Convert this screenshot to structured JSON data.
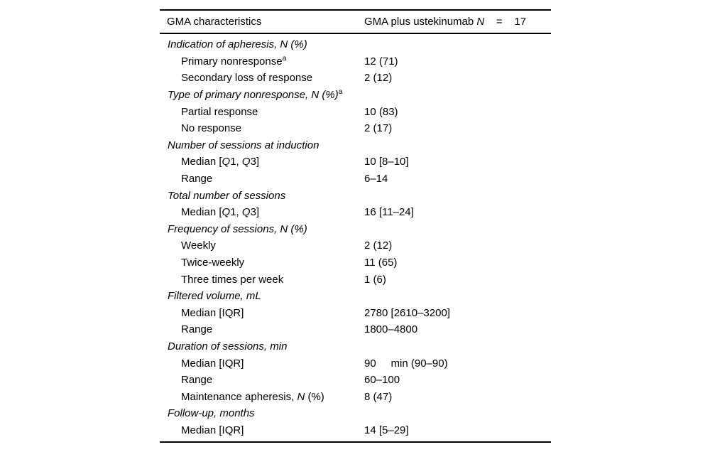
{
  "page": {
    "background_color": "#ffffff",
    "text_color": "#000000",
    "rule_color": "#000000"
  },
  "table": {
    "header": {
      "col1": "GMA characteristics",
      "col2_segments": [
        {
          "t": "GMA plus ustekinumab "
        },
        {
          "t": "N",
          "i": true
        },
        {
          "t": "    =    17"
        }
      ]
    },
    "rows": [
      {
        "type": "section",
        "label": [
          {
            "t": "Indication of apheresis, N (%)"
          }
        ],
        "value": ""
      },
      {
        "type": "item",
        "label": [
          {
            "t": "Primary nonresponse"
          },
          {
            "t": "a",
            "s": true
          }
        ],
        "value": "12 (71)"
      },
      {
        "type": "item",
        "label": [
          {
            "t": "Secondary loss of response"
          }
        ],
        "value": "2 (12)"
      },
      {
        "type": "section",
        "label": [
          {
            "t": "Type of primary nonresponse, N (%)"
          },
          {
            "t": "a",
            "s": true
          }
        ],
        "value": ""
      },
      {
        "type": "item",
        "label": [
          {
            "t": "Partial response"
          }
        ],
        "value": "10 (83)"
      },
      {
        "type": "item",
        "label": [
          {
            "t": "No response"
          }
        ],
        "value": "2 (17)"
      },
      {
        "type": "section",
        "label": [
          {
            "t": "Number of sessions at induction"
          }
        ],
        "value": ""
      },
      {
        "type": "item",
        "label": [
          {
            "t": "Median ["
          },
          {
            "t": "Q",
            "i": true
          },
          {
            "t": "1, "
          },
          {
            "t": "Q",
            "i": true
          },
          {
            "t": "3]"
          }
        ],
        "value": "10 [8–10]"
      },
      {
        "type": "item",
        "label": [
          {
            "t": "Range"
          }
        ],
        "value": "6–14"
      },
      {
        "type": "section",
        "label": [
          {
            "t": "Total number of sessions"
          }
        ],
        "value": ""
      },
      {
        "type": "item",
        "label": [
          {
            "t": "Median ["
          },
          {
            "t": "Q",
            "i": true
          },
          {
            "t": "1, "
          },
          {
            "t": "Q",
            "i": true
          },
          {
            "t": "3]"
          }
        ],
        "value": "16 [11–24]"
      },
      {
        "type": "section",
        "label": [
          {
            "t": "Frequency of sessions, N (%)"
          }
        ],
        "value": ""
      },
      {
        "type": "item",
        "label": [
          {
            "t": "Weekly"
          }
        ],
        "value": "2 (12)"
      },
      {
        "type": "item",
        "label": [
          {
            "t": "Twice-weekly"
          }
        ],
        "value": "11 (65)"
      },
      {
        "type": "item",
        "label": [
          {
            "t": "Three times per week"
          }
        ],
        "value": "1 (6)"
      },
      {
        "type": "section",
        "label": [
          {
            "t": "Filtered volume, mL"
          }
        ],
        "value": ""
      },
      {
        "type": "item",
        "label": [
          {
            "t": "Median [IQR]"
          }
        ],
        "value": "2780 [2610–3200]"
      },
      {
        "type": "item",
        "label": [
          {
            "t": "Range"
          }
        ],
        "value": "1800–4800"
      },
      {
        "type": "section",
        "label": [
          {
            "t": "Duration of sessions, min"
          }
        ],
        "value": ""
      },
      {
        "type": "item",
        "label": [
          {
            "t": "Median [IQR]"
          }
        ],
        "value": "90     min (90–90)"
      },
      {
        "type": "item",
        "label": [
          {
            "t": "Range"
          }
        ],
        "value": "60–100"
      },
      {
        "type": "item",
        "label": [
          {
            "t": "Maintenance apheresis, "
          },
          {
            "t": "N",
            "i": true
          },
          {
            "t": " (%)"
          }
        ],
        "value": "8 (47)"
      },
      {
        "type": "section",
        "label": [
          {
            "t": "Follow-up, months"
          }
        ],
        "value": ""
      },
      {
        "type": "item",
        "label": [
          {
            "t": "Median [IQR]"
          }
        ],
        "value": "14 [5–29]"
      }
    ]
  }
}
